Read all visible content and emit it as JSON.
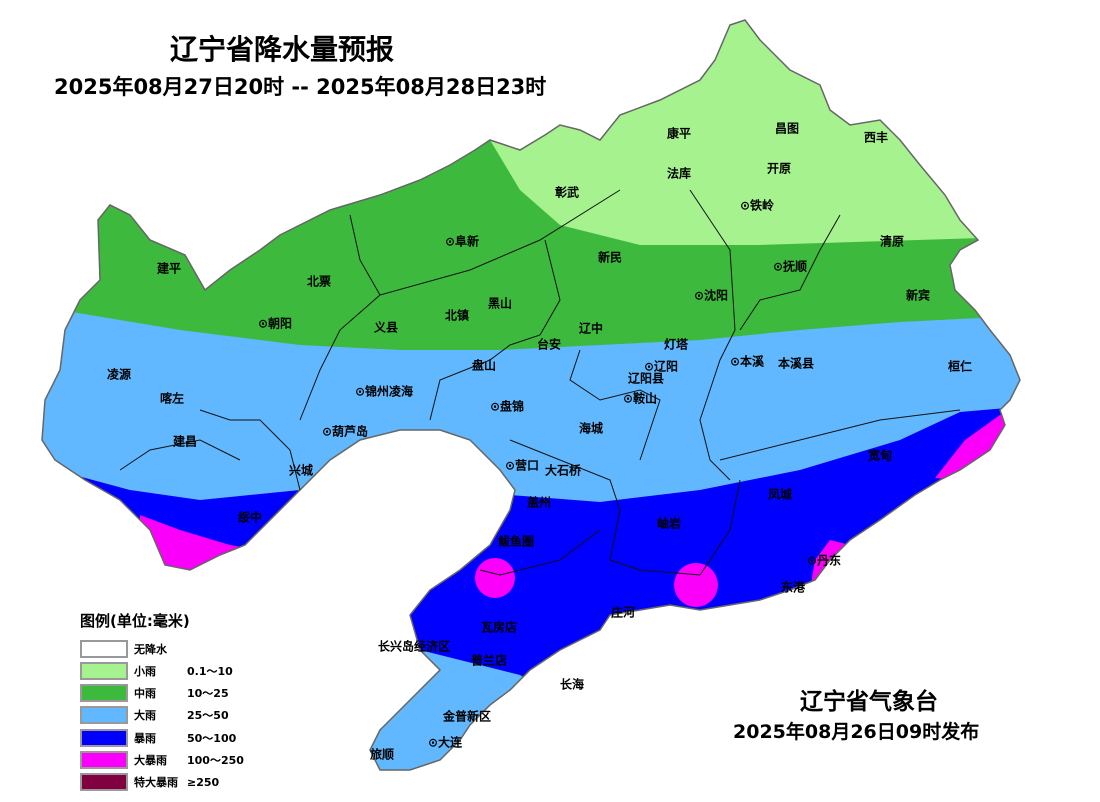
{
  "header": {
    "title": "辽宁省降水量预报",
    "period": "2025年08月27日20时 -- 2025年08月28日23时"
  },
  "footer": {
    "issuer": "辽宁省气象台",
    "issued": "2025年08月26日09时发布"
  },
  "legend": {
    "title": "图例(单位:毫米)",
    "items": [
      {
        "name": "无降水",
        "range": "",
        "color": "#ffffff"
      },
      {
        "name": "小雨",
        "range": "0.1～10",
        "color": "#a6f28f"
      },
      {
        "name": "中雨",
        "range": "10～25",
        "color": "#3dba3d"
      },
      {
        "name": "大雨",
        "range": "25～50",
        "color": "#61b8ff"
      },
      {
        "name": "暴雨",
        "range": "50～100",
        "color": "#0000fe"
      },
      {
        "name": "大暴雨",
        "range": "100～250",
        "color": "#fa00fa"
      },
      {
        "name": "特大暴雨",
        "range": "≥250",
        "color": "#800040"
      }
    ]
  },
  "labels": [
    "康平",
    "昌图",
    "西丰",
    "彰武",
    "法库",
    "开原",
    "⊙铁岭",
    "⊙阜新",
    "清原",
    "建平",
    "新民",
    "⊙抚顺",
    "北票",
    "黑山",
    "⊙沈阳",
    "新宾",
    "⊙朝阳",
    "义县",
    "北镇",
    "辽中",
    "台安",
    "灯塔",
    "凌源",
    "盘山",
    "⊙辽阳",
    "⊙本溪",
    "本溪县",
    "桓仁",
    "辽阳县",
    "⊙锦州凌海",
    "喀左",
    "⊙盘锦",
    "⊙鞍山",
    "海城",
    "⊙葫芦岛",
    "建昌",
    "宽甸",
    "兴城",
    "⊙营口",
    "大石桥",
    "凤城",
    "盖州",
    "绥中",
    "岫岩",
    "鲅鱼圈",
    "⊙丹东",
    "东港",
    "庄河",
    "瓦房店",
    "长兴岛经济区",
    "普兰店",
    "长海",
    "金普新区",
    "⊙大连",
    "旅顺"
  ]
}
